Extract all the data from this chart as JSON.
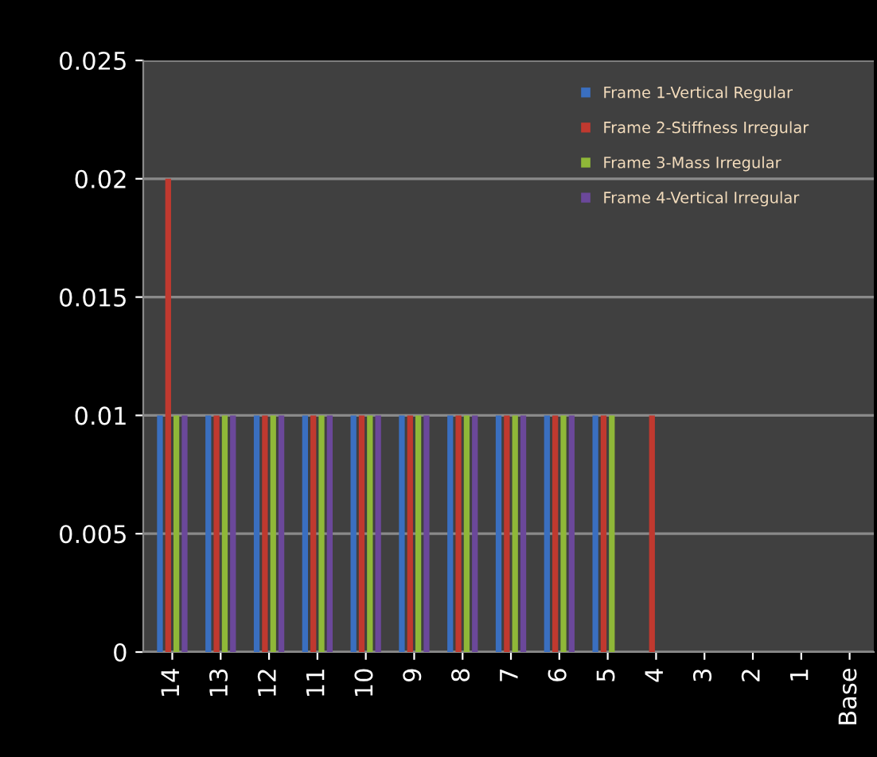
{
  "chart_data": {
    "type": "bar",
    "categories": [
      "14",
      "13",
      "12",
      "11",
      "10",
      "9",
      "8",
      "7",
      "6",
      "5",
      "4",
      "3",
      "2",
      "1",
      "Base"
    ],
    "series": [
      {
        "name": "Frame 1-Vertical Regular",
        "color": "#3a6fc0",
        "values": [
          0.01,
          0.01,
          0.01,
          0.01,
          0.01,
          0.01,
          0.01,
          0.01,
          0.01,
          0.01,
          0,
          0,
          0,
          0,
          0
        ]
      },
      {
        "name": "Frame 2-Stiffness Irregular",
        "color": "#c0392f",
        "values": [
          0.02,
          0.01,
          0.01,
          0.01,
          0.01,
          0.01,
          0.01,
          0.01,
          0.01,
          0.01,
          0.01,
          0,
          0,
          0,
          0
        ]
      },
      {
        "name": "Frame 3-Mass Irregular",
        "color": "#8fb838",
        "values": [
          0.01,
          0.01,
          0.01,
          0.01,
          0.01,
          0.01,
          0.01,
          0.01,
          0.01,
          0.01,
          0,
          0,
          0,
          0,
          0
        ]
      },
      {
        "name": "Frame 4-Vertical Irregular",
        "color": "#6b489a",
        "values": [
          0.01,
          0.01,
          0.01,
          0.01,
          0.01,
          0.01,
          0.01,
          0.01,
          0.01,
          0,
          0,
          0,
          0,
          0,
          0
        ]
      }
    ],
    "ylim": [
      0,
      0.025
    ],
    "yticks": [
      0,
      0.005,
      0.01,
      0.015,
      0.02,
      0.025
    ],
    "grid": "y",
    "legend": "top right"
  }
}
